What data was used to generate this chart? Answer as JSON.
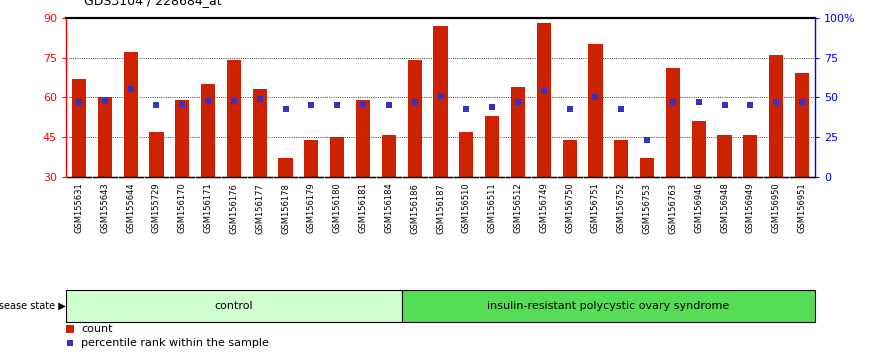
{
  "title": "GDS3104 / 228684_at",
  "samples": [
    "GSM155631",
    "GSM155643",
    "GSM155644",
    "GSM155729",
    "GSM156170",
    "GSM156171",
    "GSM156176",
    "GSM156177",
    "GSM156178",
    "GSM156179",
    "GSM156180",
    "GSM156181",
    "GSM156184",
    "GSM156186",
    "GSM156187",
    "GSM156510",
    "GSM156511",
    "GSM156512",
    "GSM156749",
    "GSM156750",
    "GSM156751",
    "GSM156752",
    "GSM156753",
    "GSM156763",
    "GSM156946",
    "GSM156948",
    "GSM156949",
    "GSM156950",
    "GSM156951"
  ],
  "counts": [
    67,
    60,
    77,
    47,
    59,
    65,
    74,
    63,
    37,
    44,
    45,
    59,
    46,
    74,
    87,
    47,
    53,
    64,
    88,
    44,
    80,
    44,
    37,
    71,
    51,
    46,
    46,
    76,
    69
  ],
  "percentiles": [
    47,
    48,
    55,
    45,
    46,
    48,
    48,
    49,
    43,
    45,
    45,
    46,
    45,
    47,
    51,
    43,
    44,
    47,
    54,
    43,
    50,
    43,
    23,
    47,
    47,
    45,
    45,
    47,
    47
  ],
  "control_count": 13,
  "disease_count": 16,
  "control_label": "control",
  "disease_label": "insulin-resistant polycystic ovary syndrome",
  "disease_state_label": "disease state",
  "bar_color": "#CC2200",
  "percentile_color": "#3333CC",
  "ymin": 30,
  "ymax": 90,
  "yticks_left": [
    30,
    45,
    60,
    75,
    90
  ],
  "yticks_right": [
    0,
    25,
    50,
    75,
    100
  ],
  "ytick_labels_right": [
    "0",
    "25",
    "50",
    "75",
    "100%"
  ],
  "control_bg": "#ccffcc",
  "disease_bg": "#55dd55",
  "bar_width": 0.55
}
